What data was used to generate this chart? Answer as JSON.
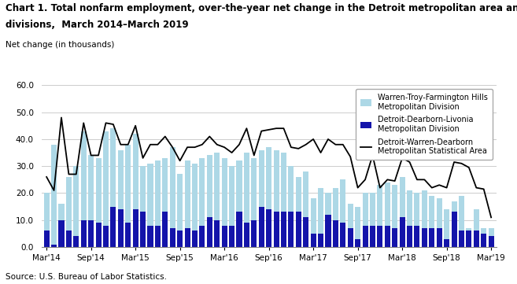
{
  "title_line1": "Chart 1. Total nonfarm employment, over-the-year net change in the Detroit metropolitan area and its",
  "title_line2": "divisions,  March 2014–March 2019",
  "ylabel": "Net change (in thousands)",
  "source": "Source: U.S. Bureau of Labor Statistics.",
  "ylim": [
    0.0,
    60.0
  ],
  "yticks": [
    0.0,
    10.0,
    20.0,
    30.0,
    40.0,
    50.0,
    60.0
  ],
  "legend_labels": [
    "Warren-Troy-Farmington Hills\nMetropolitan Division",
    "Detroit-Dearborn-Livonia\nMetropolitan Division",
    "Detroit-Warren-Dearborn\nMetropolitan Statistical Area"
  ],
  "light_blue_color": "#add8e6",
  "dark_blue_color": "#1414aa",
  "line_color": "#000000",
  "bar_dark": [
    6.0,
    1.0,
    10.0,
    6.0,
    4.0,
    10.0,
    10.0,
    9.0,
    8.0,
    15.0,
    14.0,
    9.0,
    14.0,
    13.0,
    8.0,
    8.0,
    13.0,
    7.0,
    6.0,
    7.0,
    6.0,
    8.0,
    11.0,
    10.0,
    8.0,
    8.0,
    13.0,
    9.0,
    10.0,
    15.0,
    14.0,
    13.0,
    13.0,
    13.0,
    13.0,
    11.0,
    5.0,
    5.0,
    12.0,
    10.0,
    9.0,
    7.0,
    3.0,
    8.0,
    8.0,
    8.0,
    8.0,
    7.0,
    11.0,
    8.0,
    8.0,
    7.0,
    7.0,
    7.0,
    3.0,
    13.0,
    6.0,
    7.0,
    6.0,
    5.0,
    7.0
  ],
  "bar_light_above": [
    14.0,
    37.0,
    6.0,
    20.0,
    26.0,
    33.0,
    24.0,
    24.0,
    35.0,
    29.0,
    22.0,
    29.0,
    28.0,
    17.0,
    23.0,
    24.0,
    20.0,
    30.0,
    21.0,
    25.0,
    25.0,
    25.0,
    23.0,
    25.0,
    25.0,
    22.0,
    19.0,
    26.0,
    23.0,
    21.0,
    23.0,
    23.0,
    22.0,
    17.0,
    13.0,
    17.0,
    13.0,
    17.0,
    8.0,
    12.0,
    16.0,
    9.0,
    12.0,
    12.0,
    12.0,
    15.0,
    16.0,
    16.0,
    15.0,
    13.0,
    12.0,
    14.0,
    12.0,
    11.0,
    11.0,
    4.0,
    13.0,
    -1.0,
    8.0,
    2.0,
    -3.0
  ],
  "line_values": [
    26.0,
    21.0,
    48.0,
    27.0,
    27.0,
    46.0,
    34.0,
    34.0,
    46.0,
    45.5,
    38.0,
    38.0,
    45.0,
    33.0,
    38.0,
    38.0,
    41.0,
    37.0,
    32.0,
    37.0,
    37.0,
    38.0,
    41.0,
    38.0,
    37.0,
    35.0,
    38.0,
    44.0,
    34.0,
    43.0,
    43.5,
    44.0,
    44.0,
    37.0,
    36.5,
    38.0,
    40.0,
    35.0,
    40.0,
    38.0,
    38.0,
    33.5,
    22.0,
    25.0,
    34.0,
    22.0,
    25.0,
    24.5,
    33.0,
    31.5,
    25.0,
    25.0,
    22.0,
    23.0,
    22.0,
    31.5,
    31.0,
    29.5,
    22.0,
    21.5,
    11.0
  ],
  "x_tick_labels": [
    "Mar'14",
    "Sep'14",
    "Mar'15",
    "Sep'15",
    "Mar'16",
    "Sep'16",
    "Mar'17",
    "Sep'17",
    "Mar'18",
    "Sep'18",
    "Mar'19"
  ],
  "x_tick_positions": [
    0,
    6,
    12,
    18,
    24,
    30,
    36,
    42,
    48,
    54,
    60
  ]
}
